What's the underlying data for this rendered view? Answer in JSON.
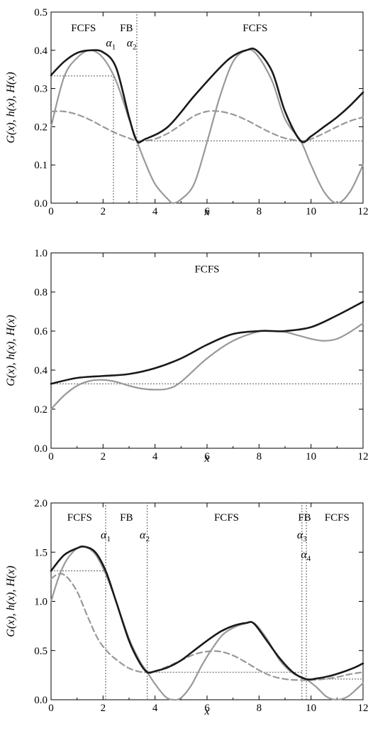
{
  "chart_data": [
    {
      "type": "line",
      "xlabel": "x",
      "ylabel": "G(x), h(x), H(x)",
      "xlim": [
        0,
        12
      ],
      "ylim": [
        0,
        0.5
      ],
      "xticks": [
        "0",
        "2",
        "4",
        "6",
        "8",
        "10",
        "12"
      ],
      "yticks": [
        "0.0",
        "0.1",
        "0.2",
        "0.3",
        "0.4",
        "0.5"
      ],
      "ytick_values": [
        0,
        0.1,
        0.2,
        0.3,
        0.4,
        0.5
      ],
      "series": [
        {
          "style": "solid-black",
          "x": [
            0,
            0.5,
            1.0,
            1.5,
            2.0,
            2.5,
            3.0,
            3.3,
            3.6,
            4.5,
            5.5,
            6.5,
            7.0,
            7.5,
            7.9,
            8.5,
            9.0,
            9.6,
            10.0,
            10.5,
            11.0,
            11.5,
            12.0
          ],
          "values": [
            0.335,
            0.37,
            0.393,
            0.4,
            0.395,
            0.355,
            0.225,
            0.163,
            0.167,
            0.2,
            0.28,
            0.355,
            0.385,
            0.4,
            0.4,
            0.345,
            0.24,
            0.163,
            0.175,
            0.2,
            0.225,
            0.255,
            0.29
          ]
        },
        {
          "style": "solid-gray",
          "x": [
            0,
            0.5,
            1.0,
            1.5,
            2.0,
            2.5,
            3.0,
            3.3,
            3.6,
            4.0,
            4.5,
            4.7,
            5.0,
            5.5,
            6.0,
            6.5,
            7.0,
            7.5,
            7.9,
            8.5,
            9.0,
            9.6,
            10.0,
            10.5,
            11.0,
            11.5,
            12.0
          ],
          "values": [
            0.2,
            0.33,
            0.38,
            0.4,
            0.38,
            0.32,
            0.22,
            0.163,
            0.11,
            0.05,
            0.01,
            0.0,
            0.01,
            0.05,
            0.16,
            0.28,
            0.37,
            0.4,
            0.39,
            0.32,
            0.22,
            0.163,
            0.1,
            0.03,
            0.0,
            0.03,
            0.1
          ]
        },
        {
          "style": "dashed-gray",
          "x": [
            0,
            0.5,
            1.0,
            1.5,
            2.0,
            2.5,
            3.0,
            3.3,
            3.6,
            4.0,
            4.5,
            5.0,
            5.5,
            6.0,
            6.5,
            7.0,
            7.5,
            8.0,
            8.5,
            9.0,
            9.6,
            10.0,
            10.5,
            11.0,
            11.5,
            12.0
          ],
          "values": [
            0.24,
            0.24,
            0.232,
            0.218,
            0.2,
            0.183,
            0.17,
            0.163,
            0.163,
            0.168,
            0.183,
            0.205,
            0.228,
            0.24,
            0.24,
            0.232,
            0.218,
            0.2,
            0.183,
            0.17,
            0.163,
            0.168,
            0.183,
            0.2,
            0.215,
            0.225
          ]
        }
      ],
      "reference_lines": [
        {
          "orientation": "h",
          "y": 0.333,
          "x_from": 0,
          "x_to": 2.4
        },
        {
          "orientation": "h",
          "y": 0.163,
          "x_from": 3.3,
          "x_to": 12
        },
        {
          "orientation": "v",
          "x": 2.4,
          "y_from": 0,
          "y_to": 0.333
        },
        {
          "orientation": "v",
          "x": 3.3,
          "y_from": 0,
          "y_to": 0.5
        }
      ],
      "region_labels": [
        {
          "text": "FCFS",
          "x": 1.25,
          "y": 0.45
        },
        {
          "text": "FB",
          "x": 2.9,
          "y": 0.45
        },
        {
          "text": "FCFS",
          "x": 7.85,
          "y": 0.45
        }
      ],
      "alpha_labels": [
        {
          "symbol": "α",
          "sub": "1",
          "x": 2.3,
          "y": 0.41
        },
        {
          "symbol": "α",
          "sub": "2",
          "x": 3.1,
          "y": 0.41
        }
      ]
    },
    {
      "type": "line",
      "xlabel": "x",
      "ylabel": "G(x), h(x), H(x)",
      "xlim": [
        0,
        12
      ],
      "ylim": [
        0,
        1.0
      ],
      "xticks": [
        "0",
        "2",
        "4",
        "6",
        "8",
        "10",
        "12"
      ],
      "yticks": [
        "0.0",
        "0.2",
        "0.4",
        "0.6",
        "0.8",
        "1.0"
      ],
      "ytick_values": [
        0,
        0.2,
        0.4,
        0.6,
        0.8,
        1.0
      ],
      "series": [
        {
          "style": "solid-black",
          "x": [
            0,
            1,
            2,
            3,
            4,
            5,
            6,
            7,
            8,
            8.5,
            9,
            10,
            11,
            12
          ],
          "values": [
            0.33,
            0.36,
            0.37,
            0.38,
            0.41,
            0.46,
            0.53,
            0.585,
            0.6,
            0.6,
            0.6,
            0.62,
            0.68,
            0.75
          ]
        },
        {
          "style": "solid-gray",
          "x": [
            0,
            0.5,
            1,
            1.5,
            2,
            2.5,
            3,
            3.5,
            4,
            4.5,
            5,
            6,
            7,
            8,
            8.5,
            9,
            9.5,
            10,
            10.5,
            11,
            11.5,
            12
          ],
          "values": [
            0.2,
            0.27,
            0.32,
            0.345,
            0.35,
            0.34,
            0.32,
            0.305,
            0.3,
            0.305,
            0.34,
            0.46,
            0.55,
            0.598,
            0.6,
            0.595,
            0.578,
            0.56,
            0.55,
            0.56,
            0.595,
            0.64
          ]
        }
      ],
      "reference_lines": [
        {
          "orientation": "h",
          "y": 0.33,
          "x_from": 0,
          "x_to": 12
        }
      ],
      "region_labels": [
        {
          "text": "FCFS",
          "x": 6.0,
          "y": 0.9
        }
      ],
      "alpha_labels": []
    },
    {
      "type": "line",
      "xlabel": "x",
      "ylabel": "G(x), h(x), H(x)",
      "xlim": [
        0,
        12
      ],
      "ylim": [
        0,
        2.0
      ],
      "xticks": [
        "0",
        "2",
        "4",
        "6",
        "8",
        "10",
        "12"
      ],
      "yticks": [
        "0.0",
        "0.5",
        "1.0",
        "1.5",
        "2.0"
      ],
      "ytick_values": [
        0,
        0.5,
        1.0,
        1.5,
        2.0
      ],
      "series": [
        {
          "style": "solid-black",
          "x": [
            0,
            0.5,
            1.0,
            1.3,
            1.7,
            2.1,
            2.5,
            3.0,
            3.4,
            3.7,
            4.0,
            4.5,
            5.0,
            5.5,
            6.0,
            6.5,
            7.0,
            7.5,
            7.8,
            8.3,
            8.8,
            9.3,
            9.8,
            10.2,
            10.7,
            11.2,
            11.7,
            12.0
          ],
          "values": [
            1.31,
            1.47,
            1.54,
            1.555,
            1.5,
            1.31,
            1.0,
            0.6,
            0.38,
            0.28,
            0.29,
            0.33,
            0.4,
            0.5,
            0.6,
            0.69,
            0.75,
            0.78,
            0.775,
            0.6,
            0.42,
            0.28,
            0.21,
            0.215,
            0.24,
            0.28,
            0.33,
            0.37
          ]
        },
        {
          "style": "solid-gray",
          "x": [
            0,
            0.3,
            0.6,
            1.0,
            1.3,
            1.7,
            2.1,
            2.5,
            3.0,
            3.4,
            3.7,
            4.0,
            4.4,
            4.7,
            5.0,
            5.4,
            5.8,
            6.2,
            6.6,
            7.0,
            7.4,
            7.8,
            8.3,
            8.8,
            9.3,
            9.8,
            10.2,
            10.6,
            11.0,
            11.4,
            11.8,
            12.0
          ],
          "values": [
            1.0,
            1.25,
            1.42,
            1.54,
            1.555,
            1.48,
            1.28,
            1.0,
            0.62,
            0.4,
            0.28,
            0.16,
            0.03,
            0.0,
            0.02,
            0.15,
            0.35,
            0.52,
            0.66,
            0.73,
            0.77,
            0.78,
            0.62,
            0.4,
            0.27,
            0.21,
            0.13,
            0.03,
            0.0,
            0.03,
            0.12,
            0.17
          ]
        },
        {
          "style": "dashed-gray",
          "x": [
            0,
            0.3,
            0.6,
            1.0,
            1.4,
            1.8,
            2.2,
            2.6,
            3.0,
            3.4,
            3.7,
            4.0,
            4.5,
            5.0,
            5.5,
            6.0,
            6.5,
            7.0,
            7.5,
            8.0,
            8.5,
            9.0,
            9.5,
            10.0,
            10.5,
            11.0,
            11.5,
            12.0
          ],
          "values": [
            1.23,
            1.28,
            1.25,
            1.1,
            0.85,
            0.62,
            0.48,
            0.39,
            0.32,
            0.285,
            0.28,
            0.29,
            0.34,
            0.4,
            0.46,
            0.49,
            0.49,
            0.45,
            0.38,
            0.3,
            0.24,
            0.21,
            0.2,
            0.2,
            0.21,
            0.23,
            0.26,
            0.28
          ]
        }
      ],
      "reference_lines": [
        {
          "orientation": "h",
          "y": 1.31,
          "x_from": 0,
          "x_to": 2.1
        },
        {
          "orientation": "h",
          "y": 0.28,
          "x_from": 3.7,
          "x_to": 9.65
        },
        {
          "orientation": "h",
          "y": 0.21,
          "x_from": 9.82,
          "x_to": 12
        },
        {
          "orientation": "v",
          "x": 2.1,
          "y_from": 0,
          "y_to": 2.0
        },
        {
          "orientation": "v",
          "x": 3.7,
          "y_from": 0,
          "y_to": 2.0
        },
        {
          "orientation": "v",
          "x": 9.65,
          "y_from": 0,
          "y_to": 2.0
        },
        {
          "orientation": "v",
          "x": 9.82,
          "y_from": 0,
          "y_to": 2.0
        }
      ],
      "region_labels": [
        {
          "text": "FCFS",
          "x": 1.1,
          "y": 1.82
        },
        {
          "text": "FB",
          "x": 2.9,
          "y": 1.82
        },
        {
          "text": "FCFS",
          "x": 6.75,
          "y": 1.82
        },
        {
          "text": "FB",
          "x": 9.75,
          "y": 1.82
        },
        {
          "text": "FCFS",
          "x": 11.0,
          "y": 1.82
        }
      ],
      "alpha_labels": [
        {
          "symbol": "α",
          "sub": "1",
          "x": 2.1,
          "y": 1.64
        },
        {
          "symbol": "α",
          "sub": "2",
          "x": 3.6,
          "y": 1.64
        },
        {
          "symbol": "α",
          "sub": "3",
          "x": 9.65,
          "y": 1.64
        },
        {
          "symbol": "α",
          "sub": "4",
          "x": 9.8,
          "y": 1.44
        }
      ]
    }
  ],
  "colors": {
    "black_series": "#1a1a1a",
    "gray_series": "#999999",
    "reference": "#555555",
    "axis": "#000000"
  }
}
